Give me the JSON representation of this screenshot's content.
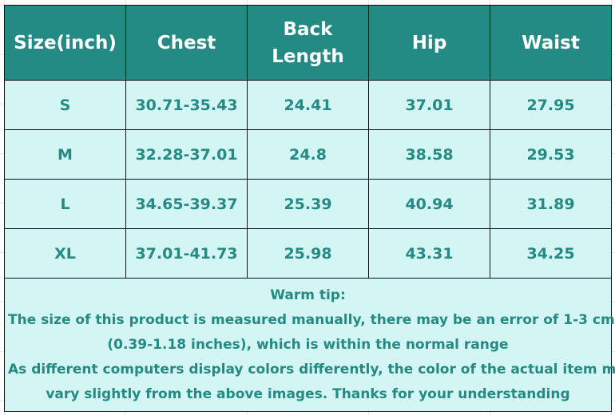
{
  "headers": [
    "Size(inch)",
    "Chest",
    "Back\nLength",
    "Hip",
    "Waist"
  ],
  "header_lines": {
    "back": "Back",
    "length": "Length"
  },
  "rows": [
    [
      "S",
      "30.71-35.43",
      "24.41",
      "37.01",
      "27.95"
    ],
    [
      "M",
      "32.28-37.01",
      "24.8",
      "38.58",
      "29.53"
    ],
    [
      "L",
      "34.65-39.37",
      "25.39",
      "40.94",
      "31.89"
    ],
    [
      "XL",
      "37.01-41.73",
      "25.98",
      "43.31",
      "34.25"
    ]
  ],
  "tip": {
    "title": "Warm tip:",
    "lines": [
      "The size of this product is measured manually, there may be an error of 1-3 cm",
      "(0.39-1.18 inches), which is within the normal range",
      "As different computers display colors differently, the color of the actual item may",
      "vary slightly from the above images. Thanks for your understanding"
    ]
  },
  "colors": {
    "header_bg": "#238b84",
    "body_bg": "#d3f5f3",
    "text": "#258a84"
  }
}
